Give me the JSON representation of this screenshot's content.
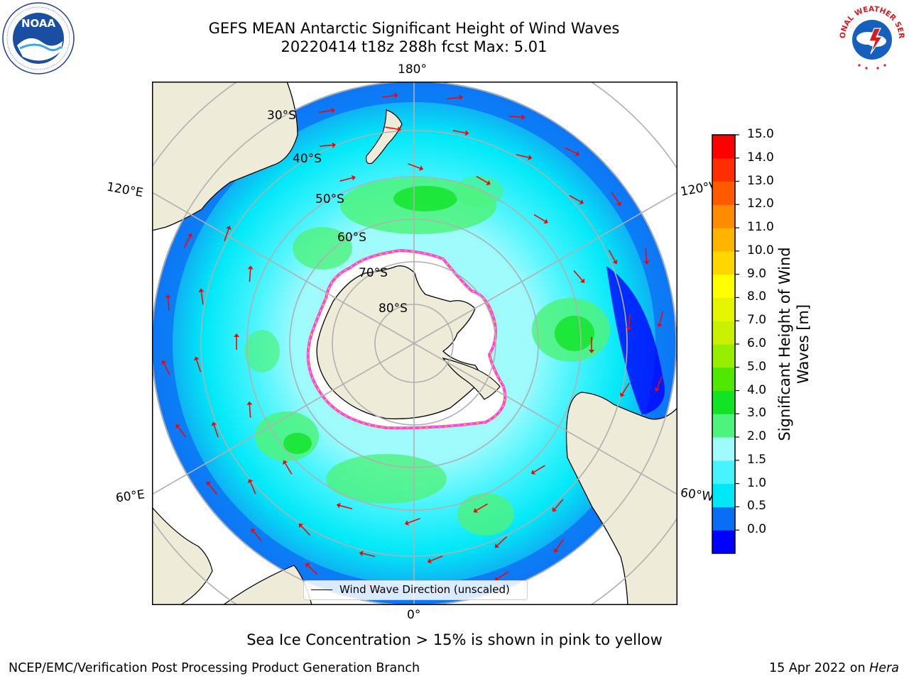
{
  "title": {
    "line1": "GEFS MEAN Antarctic Significant Height of Wind Waves",
    "line2": "20220414 t18z 288h fcst   Max: 5.01"
  },
  "logos": {
    "noaa_text": "NOAA",
    "noaa_ring_text": "NATIONAL OCEANIC AND ATMOSPHERIC ADMINISTRATION · U.S. DEPARTMENT OF COMMERCE",
    "nws_ring_text": "NATIONAL WEATHER SERVICE"
  },
  "map": {
    "projection": "south-polar-stereographic",
    "longitude_labels": {
      "top": "180°",
      "bottom": "0°",
      "upper_left": "120°E",
      "upper_right": "120°W",
      "lower_left": "60°E",
      "lower_right": "60°W"
    },
    "latitude_labels": [
      "30°S",
      "40°S",
      "50°S",
      "60°S",
      "70°S",
      "80°S"
    ],
    "land_color": "#efebd9",
    "sea_ice_color": "#ffffff",
    "grid": true
  },
  "legend": {
    "label": "Wind Wave Direction (unscaled)"
  },
  "colorbar": {
    "label_line1": "Significant Height of Wind",
    "label_line2": "Waves [m]",
    "ticks": [
      "15.0",
      "14.0",
      "13.0",
      "12.0",
      "11.0",
      "10.0",
      "9.0",
      "8.0",
      "7.0",
      "6.0",
      "5.0",
      "4.0",
      "3.0",
      "2.0",
      "1.5",
      "1.0",
      "0.5",
      "0.0"
    ],
    "colors_bottom_to_top": [
      "#0000ff",
      "#0a6ef5",
      "#00e8f8",
      "#47f4fd",
      "#a0fbfd",
      "#4df37c",
      "#12e425",
      "#50e800",
      "#98ee00",
      "#c8f000",
      "#e6f500",
      "#ffff00",
      "#ffd700",
      "#ffb400",
      "#ff8c00",
      "#ff5a00",
      "#ff2d00",
      "#ff0000"
    ]
  },
  "chart_data": {
    "type": "heatmap",
    "title": "GEFS MEAN Antarctic Significant Height of Wind Waves",
    "subtitle": "20220414 t18z 288h fcst   Max: 5.01",
    "variable": "Significant Height of Wind Waves [m]",
    "range": [
      0.0,
      15.0
    ],
    "max_value": 5.01,
    "overlay": "Wind Wave Direction (unscaled)"
  },
  "caption": "Sea Ice Concentration > 15% is shown in pink to yellow",
  "footer": {
    "left": "NCEP/EMC/Verification Post Processing Product Generation Branch",
    "right_prefix": "15 Apr 2022 on ",
    "right_em": "Hera"
  }
}
